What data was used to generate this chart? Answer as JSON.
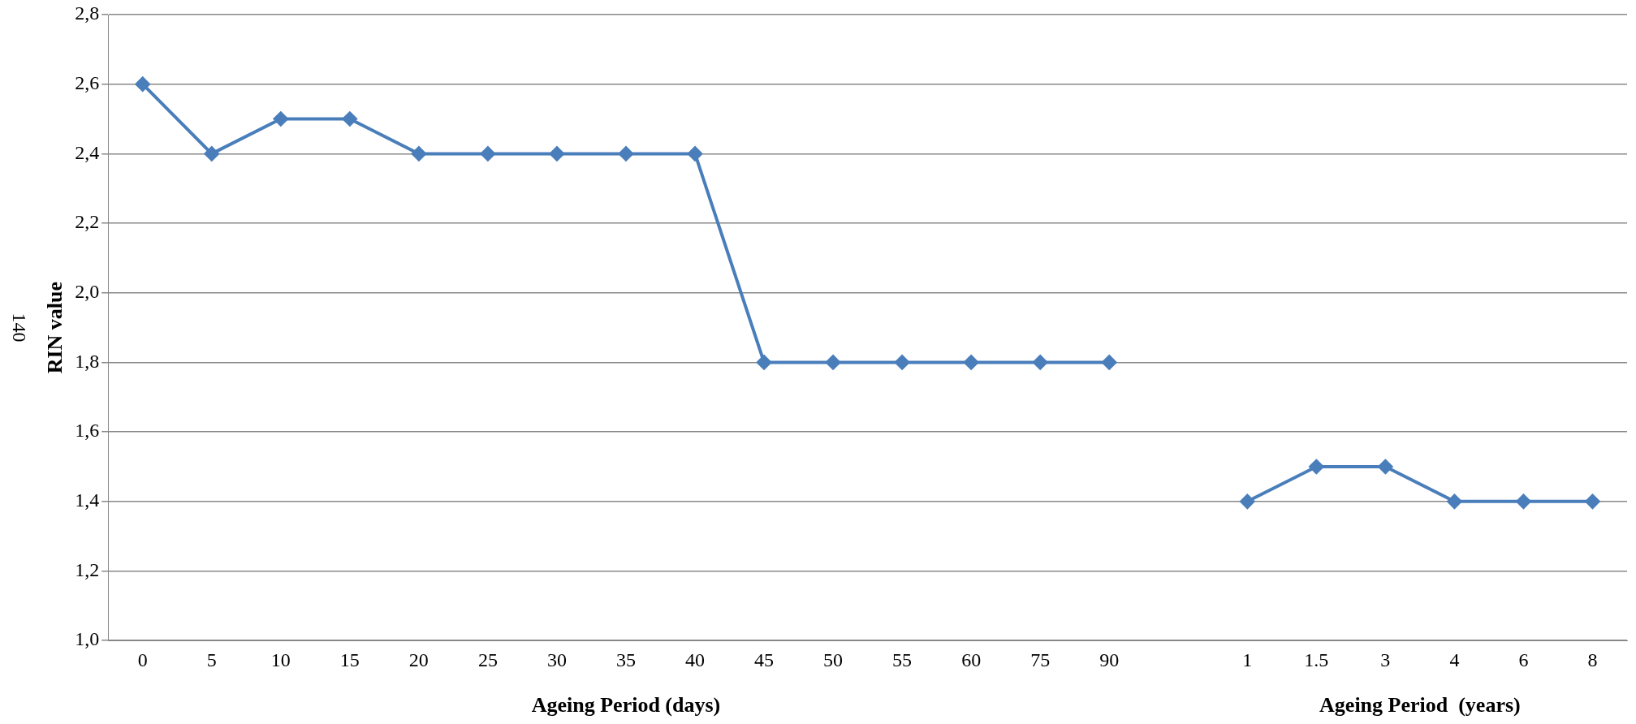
{
  "chart_data": {
    "type": "line",
    "ylabel": "RIN value",
    "xlabel": "Ageing Period (days)",
    "annotations": [
      "Ageing Period  (years)",
      "140"
    ],
    "categories": [
      "0",
      "5",
      "10",
      "15",
      "20",
      "25",
      "30",
      "35",
      "40",
      "45",
      "50",
      "55",
      "60",
      "75",
      "90",
      null,
      "1",
      "1.5",
      "3",
      "4",
      "6",
      "8"
    ],
    "series": [
      {
        "color": "#4a7ebb",
        "values": [
          2.6,
          2.4,
          2.5,
          2.5,
          2.4,
          2.4,
          2.4,
          2.4,
          2.4,
          1.8,
          1.8,
          1.8,
          1.8,
          1.8,
          1.8,
          null,
          1.4,
          1.5,
          1.5,
          1.4,
          1.4,
          1.4
        ]
      }
    ],
    "ylim": [
      1,
      2.8
    ],
    "yticks": [
      {
        "value": 1,
        "label": "1,0"
      },
      {
        "value": 1.2,
        "label": "1,2"
      },
      {
        "value": 1.4,
        "label": "1,4"
      },
      {
        "value": 1.6,
        "label": "1,6"
      },
      {
        "value": 1.8,
        "label": "1,8"
      },
      {
        "value": 2,
        "label": "2,0"
      },
      {
        "value": 2.2,
        "label": "2,2"
      },
      {
        "value": 2.4,
        "label": "2,4"
      },
      {
        "value": 2.6,
        "label": "2,6"
      },
      {
        "value": 2.8,
        "label": "2,8"
      }
    ],
    "grid": "y",
    "legend": false,
    "marker": "diamond",
    "line_style": "solid"
  }
}
